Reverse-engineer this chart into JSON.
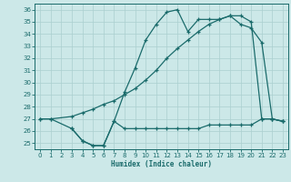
{
  "xlabel": "Humidex (Indice chaleur)",
  "xlim": [
    -0.5,
    23.5
  ],
  "ylim": [
    24.5,
    36.5
  ],
  "yticks": [
    25,
    26,
    27,
    28,
    29,
    30,
    31,
    32,
    33,
    34,
    35,
    36
  ],
  "xticks": [
    0,
    1,
    2,
    3,
    4,
    5,
    6,
    7,
    8,
    9,
    10,
    11,
    12,
    13,
    14,
    15,
    16,
    17,
    18,
    19,
    20,
    21,
    22,
    23
  ],
  "background_color": "#cce8e8",
  "line_color": "#1a6b6b",
  "grid_color": "#aacfcf",
  "line1_x": [
    0,
    1,
    3,
    4,
    5,
    6,
    7,
    8,
    9,
    10,
    11,
    12,
    13,
    14,
    15,
    16,
    17,
    18,
    19,
    20,
    21,
    22,
    23
  ],
  "line1_y": [
    27,
    27,
    26.2,
    25.2,
    24.8,
    24.8,
    26.8,
    29.2,
    31.2,
    33.5,
    34.8,
    35.8,
    36.0,
    34.2,
    35.2,
    35.2,
    35.2,
    35.5,
    34.8,
    34.5,
    33.3,
    27.0,
    26.8
  ],
  "line2_x": [
    0,
    1,
    3,
    4,
    5,
    6,
    7,
    8,
    9,
    10,
    11,
    12,
    13,
    14,
    15,
    16,
    17,
    18,
    19,
    20,
    21,
    22,
    23
  ],
  "line2_y": [
    27,
    27,
    27.2,
    27.5,
    27.8,
    28.2,
    28.5,
    29.0,
    29.5,
    30.2,
    31.0,
    32.0,
    32.8,
    33.5,
    34.2,
    34.8,
    35.2,
    35.5,
    35.5,
    35.0,
    27.0,
    27.0,
    26.8
  ],
  "line3_x": [
    3,
    4,
    5,
    6,
    7,
    8,
    9,
    10,
    11,
    12,
    13,
    14,
    15,
    16,
    17,
    18,
    19,
    20,
    21,
    22,
    23
  ],
  "line3_y": [
    26.2,
    25.2,
    24.8,
    24.8,
    26.8,
    26.2,
    26.2,
    26.2,
    26.2,
    26.2,
    26.2,
    26.2,
    26.2,
    26.5,
    26.5,
    26.5,
    26.5,
    26.5,
    27.0,
    27.0,
    26.8
  ]
}
